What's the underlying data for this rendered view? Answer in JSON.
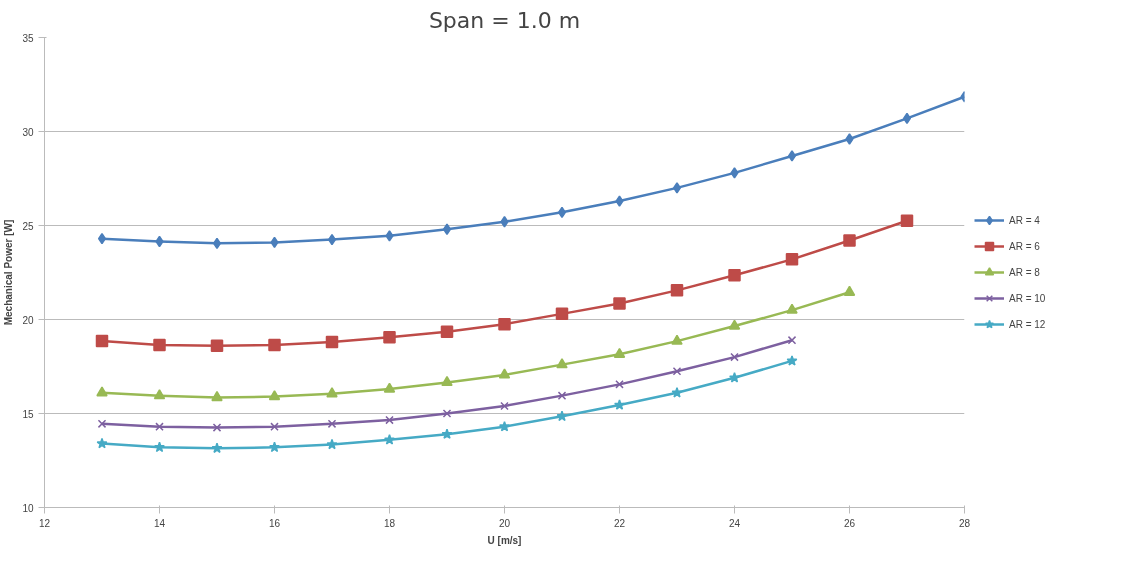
{
  "chart_data": {
    "type": "line",
    "title": "Span = 1.0 m",
    "xlabel": "U [m/s]",
    "ylabel": "Mechanical Power [W]",
    "xlim": [
      12,
      28
    ],
    "xticks": [
      12,
      14,
      16,
      18,
      20,
      22,
      24,
      26,
      28
    ],
    "ylim": [
      10,
      35
    ],
    "yticks": [
      10,
      15,
      20,
      25,
      30,
      35
    ],
    "grid": "y",
    "legend": "right",
    "series": [
      {
        "name": "AR = 4",
        "color": "#4a7ebb",
        "marker": "diamond",
        "x": [
          13,
          14,
          15,
          16,
          17,
          18,
          19,
          20,
          21,
          22,
          23,
          24,
          25,
          26,
          27,
          28
        ],
        "values": [
          24.3,
          24.15,
          24.05,
          24.1,
          24.25,
          24.45,
          24.8,
          25.2,
          25.7,
          26.3,
          27.0,
          27.8,
          28.7,
          29.6,
          30.7,
          31.85
        ]
      },
      {
        "name": "AR = 6",
        "color": "#be4b48",
        "marker": "square",
        "x": [
          13,
          14,
          15,
          16,
          17,
          18,
          19,
          20,
          21,
          22,
          23,
          24,
          25,
          26,
          27
        ],
        "values": [
          18.85,
          18.65,
          18.6,
          18.65,
          18.8,
          19.05,
          19.35,
          19.75,
          20.3,
          20.85,
          21.55,
          22.35,
          23.2,
          24.2,
          25.25
        ]
      },
      {
        "name": "AR = 8",
        "color": "#98b954",
        "marker": "triangle",
        "x": [
          13,
          14,
          15,
          16,
          17,
          18,
          19,
          20,
          21,
          22,
          23,
          24,
          25,
          26
        ],
        "values": [
          16.1,
          15.95,
          15.85,
          15.9,
          16.05,
          16.3,
          16.65,
          17.05,
          17.6,
          18.15,
          18.85,
          19.65,
          20.5,
          21.45
        ]
      },
      {
        "name": "AR = 10",
        "color": "#7d60a0",
        "marker": "cross",
        "x": [
          13,
          14,
          15,
          16,
          17,
          18,
          19,
          20,
          21,
          22,
          23,
          24,
          25
        ],
        "values": [
          14.45,
          14.3,
          14.25,
          14.3,
          14.45,
          14.65,
          15.0,
          15.4,
          15.95,
          16.55,
          17.25,
          18.0,
          18.9
        ]
      },
      {
        "name": "AR = 12",
        "color": "#46aac5",
        "marker": "star",
        "x": [
          13,
          14,
          15,
          16,
          17,
          18,
          19,
          20,
          21,
          22,
          23,
          24,
          25
        ],
        "values": [
          13.4,
          13.2,
          13.15,
          13.2,
          13.35,
          13.6,
          13.9,
          14.3,
          14.85,
          15.45,
          16.1,
          16.9,
          17.8
        ]
      }
    ]
  }
}
